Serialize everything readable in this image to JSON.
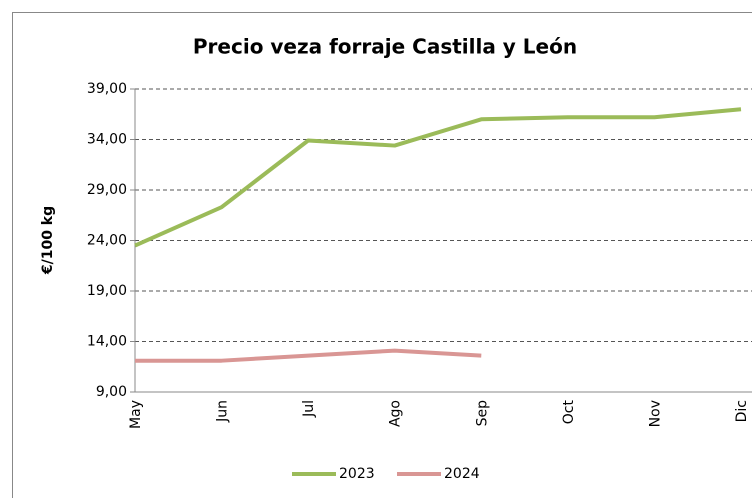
{
  "chart_data": {
    "type": "line",
    "title": "Precio veza forraje Castilla y León",
    "y_label": "€/100 kg",
    "categories": [
      "May",
      "Jun",
      "Jul",
      "Ago",
      "Sep",
      "Oct",
      "Nov",
      "Dic"
    ],
    "series": [
      {
        "name": "2023",
        "color": "#9bbb59",
        "values": [
          23.5,
          27.3,
          33.9,
          33.4,
          36.0,
          36.2,
          36.2,
          37.0
        ]
      },
      {
        "name": "2024",
        "color": "#d99694",
        "values": [
          12.1,
          12.1,
          12.6,
          13.1,
          12.6,
          null,
          null,
          null
        ]
      }
    ],
    "ylim": [
      9,
      39
    ],
    "yticks": [
      {
        "value": 9,
        "label": "9,00"
      },
      {
        "value": 14,
        "label": "14,00"
      },
      {
        "value": 19,
        "label": "19,00"
      },
      {
        "value": 24,
        "label": "24,00"
      },
      {
        "value": 29,
        "label": "29,00"
      },
      {
        "value": 34,
        "label": "34,00"
      },
      {
        "value": 39,
        "label": "39,00"
      }
    ],
    "grid": true
  }
}
